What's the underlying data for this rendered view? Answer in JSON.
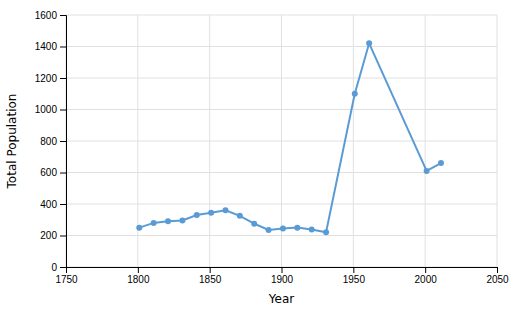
{
  "chart_data": {
    "type": "line",
    "x": [
      1801,
      1811,
      1821,
      1831,
      1841,
      1851,
      1861,
      1871,
      1881,
      1891,
      1901,
      1911,
      1921,
      1931,
      1951,
      1961,
      2001,
      2011
    ],
    "values": [
      250,
      280,
      290,
      295,
      330,
      345,
      360,
      325,
      275,
      235,
      245,
      250,
      238,
      220,
      1100,
      1420,
      610,
      660
    ],
    "color": "#5b9bd5",
    "marker": "circle",
    "xlabel": "Year",
    "ylabel": "Total Population",
    "xlim": [
      1750,
      2050
    ],
    "ylim": [
      0,
      1600
    ],
    "xticks": [
      1750,
      1800,
      1850,
      1900,
      1950,
      2000,
      2050
    ],
    "yticks": [
      0,
      200,
      400,
      600,
      800,
      1000,
      1200,
      1400,
      1600
    ],
    "grid": true
  }
}
